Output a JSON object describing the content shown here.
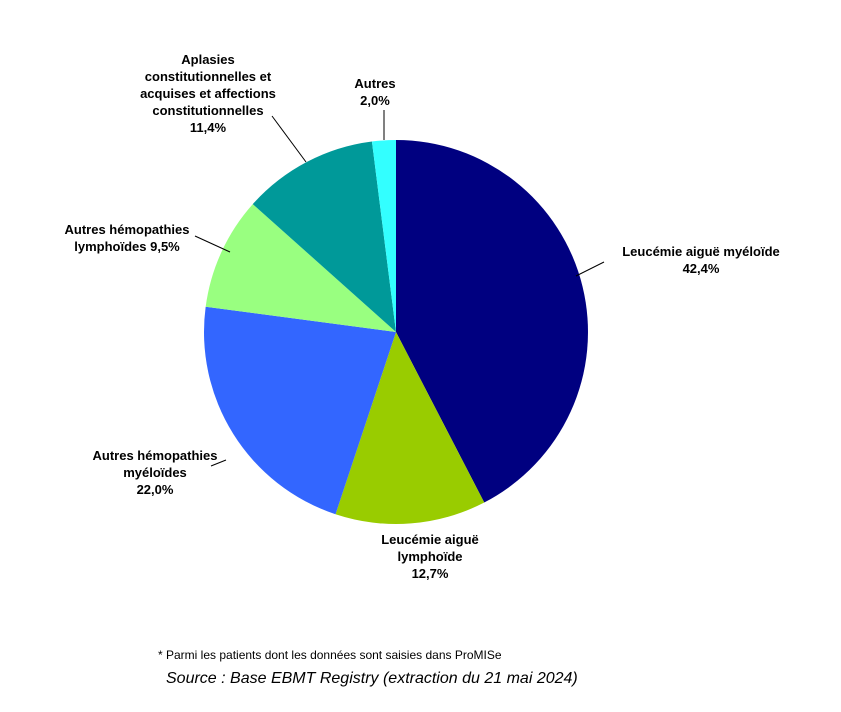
{
  "chart_data": {
    "type": "pie",
    "slices": [
      {
        "label_lines": [
          "Leucémie aiguë myéloïde",
          "42,4%"
        ],
        "value": 42.4,
        "color": "#000080"
      },
      {
        "label_lines": [
          "Leucémie aiguë",
          "lymphoïde",
          "12,7%"
        ],
        "value": 12.7,
        "color": "#99CC00"
      },
      {
        "label_lines": [
          "Autres hémopathies",
          "myéloïdes",
          "22,0%"
        ],
        "value": 22.0,
        "color": "#3366FF"
      },
      {
        "label_lines": [
          "Autres hémopathies",
          "lymphoïdes 9,5%"
        ],
        "value": 9.5,
        "color": "#99FF80"
      },
      {
        "label_lines": [
          "Aplasies",
          "constitutionnelles et",
          "acquises et affections",
          "constitutionnelles",
          "11,4%"
        ],
        "value": 11.4,
        "color": "#009999"
      },
      {
        "label_lines": [
          "Autres",
          "2,0%"
        ],
        "value": 2.0,
        "color": "#33FFFF"
      }
    ]
  },
  "footnote": "* Parmi les patients dont les données sont saisies dans ProMISe",
  "source": "Source : Base EBMT Registry (extraction du 21 mai 2024)"
}
